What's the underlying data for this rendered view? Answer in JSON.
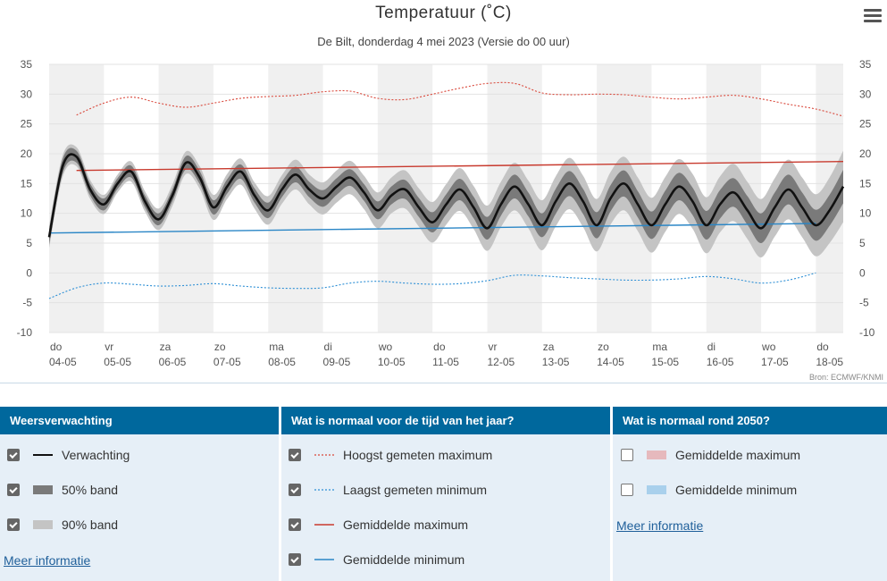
{
  "header": {
    "title": "Temperatuur (˚C)",
    "subtitle": "De Bilt, donderdag 4 mei 2023 (Versie do 00 uur)",
    "source": "Bron: ECMWF/KNMI"
  },
  "colors": {
    "forecast": "#111111",
    "band50": "#7a7a7a",
    "band90": "#c4c4c4",
    "record_max": "#d9473a",
    "record_min": "#2d8fd5",
    "avg_max": "#c83a2e",
    "avg_min": "#2a86c6",
    "panel_head": "#00689d",
    "panel_bg": "#e6eff7",
    "weekend_shade": "#f0f0f0"
  },
  "chart_data": {
    "type": "line",
    "title": "Temperatuur (˚C)",
    "ylim": [
      -10,
      35
    ],
    "yticks": [
      -10,
      -5,
      0,
      5,
      10,
      15,
      20,
      25,
      30,
      35
    ],
    "x_range_days": [
      0,
      14.5
    ],
    "x_ticks": [
      {
        "day": "do",
        "date": "04-05"
      },
      {
        "day": "vr",
        "date": "05-05"
      },
      {
        "day": "za",
        "date": "06-05"
      },
      {
        "day": "zo",
        "date": "07-05"
      },
      {
        "day": "ma",
        "date": "08-05"
      },
      {
        "day": "di",
        "date": "09-05"
      },
      {
        "day": "wo",
        "date": "10-05"
      },
      {
        "day": "do",
        "date": "11-05"
      },
      {
        "day": "vr",
        "date": "12-05"
      },
      {
        "day": "za",
        "date": "13-05"
      },
      {
        "day": "zo",
        "date": "14-05"
      },
      {
        "day": "ma",
        "date": "15-05"
      },
      {
        "day": "di",
        "date": "16-05"
      },
      {
        "day": "wo",
        "date": "17-05"
      },
      {
        "day": "do",
        "date": "18-05"
      }
    ],
    "forecast": {
      "name": "Verwachting",
      "x": [
        0,
        0.25,
        0.5,
        0.75,
        1,
        1.25,
        1.5,
        1.75,
        2,
        2.25,
        2.5,
        2.75,
        3,
        3.25,
        3.5,
        3.75,
        4,
        4.25,
        4.5,
        4.75,
        5,
        5.25,
        5.5,
        5.75,
        6,
        6.25,
        6.5,
        6.75,
        7,
        7.25,
        7.5,
        7.75,
        8,
        8.25,
        8.5,
        8.75,
        9,
        9.25,
        9.5,
        9.75,
        10,
        10.25,
        10.5,
        10.75,
        11,
        11.25,
        11.5,
        11.75,
        12,
        12.25,
        12.5,
        12.75,
        13,
        13.25,
        13.5,
        13.75,
        14,
        14.25,
        14.5
      ],
      "y": [
        6,
        18,
        19.5,
        14,
        11.5,
        15,
        17,
        12,
        9,
        13,
        18.5,
        16,
        11,
        14.5,
        17,
        13,
        10.5,
        14,
        16.5,
        14,
        12.5,
        14.5,
        16,
        13.5,
        10.5,
        13,
        14,
        11,
        8.5,
        11.5,
        14,
        11,
        7.5,
        11.5,
        14.5,
        11.5,
        8,
        12,
        15,
        12,
        8,
        12.5,
        15,
        11.5,
        8,
        11.5,
        14.5,
        12,
        8,
        11.5,
        13.5,
        10.5,
        7.5,
        11,
        14,
        11,
        8,
        10.5,
        14.5
      ],
      "band50": [
        1.2,
        1.2,
        1.0,
        1.0,
        1.0,
        0.9,
        1.0,
        1.0,
        1.0,
        1.0,
        1.1,
        1.1,
        1.2,
        1.2,
        1.2,
        1.2,
        1.3,
        1.3,
        1.3,
        1.3,
        1.4,
        1.4,
        1.4,
        1.4,
        1.5,
        1.5,
        1.6,
        1.6,
        1.7,
        1.7,
        1.8,
        1.8,
        1.9,
        1.9,
        2.0,
        2.0,
        2.0,
        2.1,
        2.1,
        2.1,
        2.2,
        2.2,
        2.2,
        2.2,
        2.3,
        2.3,
        2.3,
        2.3,
        2.4,
        2.4,
        2.4,
        2.4,
        2.5,
        2.5,
        2.5,
        2.5,
        2.6,
        2.6,
        2.8
      ],
      "band90": [
        1.8,
        1.8,
        1.6,
        1.6,
        1.6,
        1.5,
        1.7,
        1.7,
        1.8,
        1.8,
        1.9,
        1.9,
        2.1,
        2.1,
        2.2,
        2.2,
        2.4,
        2.4,
        2.5,
        2.5,
        2.7,
        2.7,
        2.8,
        2.8,
        3.0,
        3.0,
        3.2,
        3.2,
        3.4,
        3.4,
        3.6,
        3.6,
        3.8,
        3.8,
        4.0,
        4.0,
        4.2,
        4.2,
        4.3,
        4.3,
        4.4,
        4.4,
        4.5,
        4.5,
        4.6,
        4.6,
        4.6,
        4.6,
        4.7,
        4.7,
        4.8,
        4.8,
        4.9,
        4.9,
        5.0,
        5.0,
        5.2,
        5.5,
        6.0
      ]
    },
    "record_max": {
      "name": "Hoogst gemeten maximum",
      "x": [
        0.5,
        1,
        1.5,
        2,
        2.5,
        3,
        3.5,
        4,
        4.5,
        5,
        5.5,
        6,
        6.5,
        7,
        7.5,
        8,
        8.5,
        9,
        9.5,
        10,
        10.5,
        11,
        11.5,
        12,
        12.5,
        13,
        13.5,
        14,
        14.5
      ],
      "y": [
        26.5,
        28.5,
        29.5,
        28.5,
        27.8,
        28.5,
        29.3,
        29.6,
        29.8,
        30.4,
        30.5,
        29.3,
        29.1,
        30.0,
        31.0,
        31.8,
        31.8,
        30.2,
        29.9,
        30.0,
        29.9,
        29.5,
        29.2,
        29.5,
        29.8,
        29.2,
        28.3,
        27.5,
        26.3
      ]
    },
    "record_min": {
      "name": "Laagst gemeten minimum",
      "x": [
        0,
        0.5,
        1,
        1.5,
        2,
        2.5,
        3,
        3.5,
        4,
        4.5,
        5,
        5.5,
        6,
        6.5,
        7,
        7.5,
        8,
        8.5,
        9,
        9.5,
        10,
        10.5,
        11,
        11.5,
        12,
        12.5,
        13,
        13.5,
        14
      ],
      "y": [
        -4.3,
        -2.5,
        -1.7,
        -1.9,
        -2.2,
        -2.1,
        -1.8,
        -2.2,
        -2.5,
        -2.6,
        -2.5,
        -1.7,
        -1.4,
        -1.7,
        -1.9,
        -1.8,
        -1.3,
        -0.4,
        -0.5,
        -0.8,
        -1.0,
        -1.2,
        -1.2,
        -1.0,
        -0.6,
        -1.0,
        -1.7,
        -1.2,
        0.0
      ]
    },
    "avg_max": {
      "name": "Gemiddelde maximum",
      "x": [
        0.5,
        14.5
      ],
      "y": [
        17.2,
        18.7
      ]
    },
    "avg_min": {
      "name": "Gemiddelde minimum",
      "x": [
        0,
        14
      ],
      "y": [
        6.7,
        8.3
      ]
    }
  },
  "legend": {
    "panel1": {
      "title": "Weersverwachting",
      "items": [
        {
          "label": "Verwachting",
          "checked": true
        },
        {
          "label": "50% band",
          "checked": true
        },
        {
          "label": "90% band",
          "checked": true
        }
      ],
      "link": "Meer informatie"
    },
    "panel2": {
      "title": "Wat is normaal voor de tijd van het jaar?",
      "items": [
        {
          "label": "Hoogst gemeten maximum",
          "checked": true
        },
        {
          "label": "Laagst gemeten minimum",
          "checked": true
        },
        {
          "label": "Gemiddelde maximum",
          "checked": true
        },
        {
          "label": "Gemiddelde minimum",
          "checked": true
        }
      ]
    },
    "panel3": {
      "title": "Wat is normaal rond 2050?",
      "items": [
        {
          "label": "Gemiddelde maximum",
          "checked": false,
          "color": "#e6b9bd"
        },
        {
          "label": "Gemiddelde minimum",
          "checked": false,
          "color": "#a9d0ec"
        }
      ],
      "link": "Meer informatie"
    }
  }
}
